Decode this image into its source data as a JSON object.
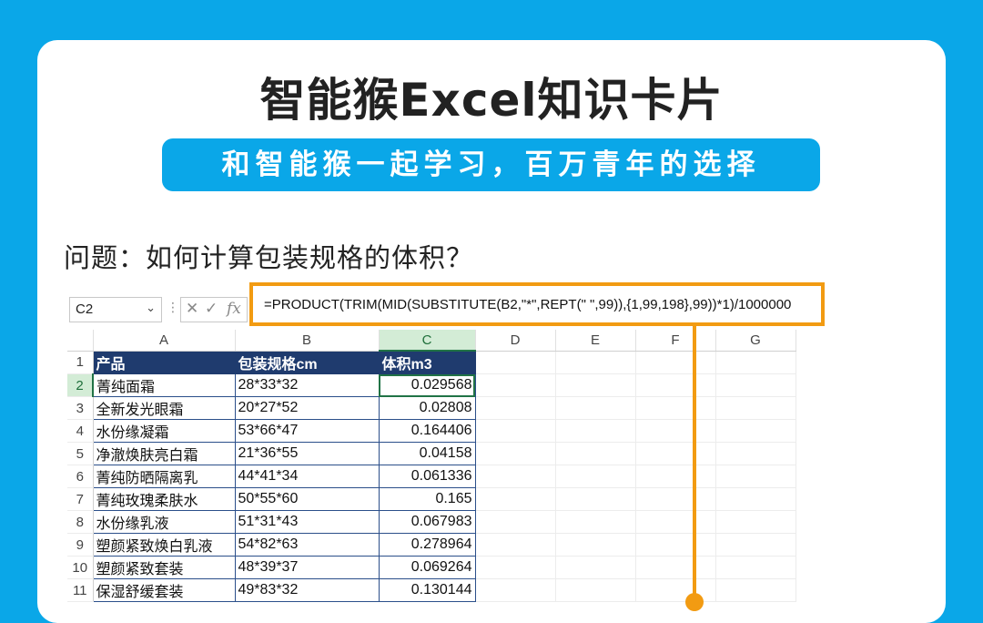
{
  "header": {
    "title": "智能猴Excel知识卡片",
    "subtitle": "和智能猴一起学习，百万青年的选择"
  },
  "question": "问题：如何计算包装规格的体积？",
  "excel": {
    "name_box": "C2",
    "fx_label": "fx",
    "formula": "=PRODUCT(TRIM(MID(SUBSTITUTE(B2,\"*\",REPT(\" \",99)),{1,99,198},99))*1)/1000000",
    "columns": [
      "A",
      "B",
      "C",
      "D",
      "E",
      "F",
      "G"
    ],
    "table_headers": [
      "产品",
      "包装规格cm",
      "体积m3"
    ],
    "rows": [
      {
        "n": "2",
        "product": "菁纯面霜",
        "spec": "28*33*32",
        "volume": "0.029568"
      },
      {
        "n": "3",
        "product": "全新发光眼霜",
        "spec": "20*27*52",
        "volume": "0.02808"
      },
      {
        "n": "4",
        "product": "水份缘凝霜",
        "spec": "53*66*47",
        "volume": "0.164406"
      },
      {
        "n": "5",
        "product": "净澈焕肤亮白霜",
        "spec": "21*36*55",
        "volume": "0.04158"
      },
      {
        "n": "6",
        "product": "菁纯防晒隔离乳",
        "spec": "44*41*34",
        "volume": "0.061336"
      },
      {
        "n": "7",
        "product": "菁纯玫瑰柔肤水",
        "spec": "50*55*60",
        "volume": "0.165"
      },
      {
        "n": "8",
        "product": "水份缘乳液",
        "spec": "51*31*43",
        "volume": "0.067983"
      },
      {
        "n": "9",
        "product": "塑颜紧致焕白乳液",
        "spec": "54*82*63",
        "volume": "0.278964"
      },
      {
        "n": "10",
        "product": "塑颜紧致套装",
        "spec": "48*39*37",
        "volume": "0.069264"
      },
      {
        "n": "11",
        "product": "保湿舒缓套装",
        "spec": "49*83*32",
        "volume": "0.130144"
      }
    ]
  },
  "colors": {
    "brand_blue": "#0aa7e8",
    "highlight_orange": "#f29b12",
    "table_header_navy": "#1f3b6e"
  }
}
